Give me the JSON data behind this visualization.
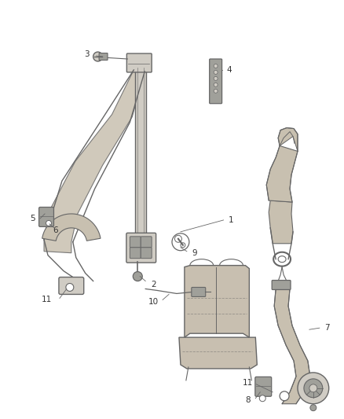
{
  "background_color": "#ffffff",
  "figure_width": 4.38,
  "figure_height": 5.33,
  "dpi": 100,
  "line_color": "#666666",
  "label_color": "#333333",
  "label_fontsize": 7.5,
  "belt_color": "#c8c0b0",
  "seat_color": "#c8bfb0",
  "part_color": "#d0ccc4",
  "part_dark": "#a0a09a"
}
